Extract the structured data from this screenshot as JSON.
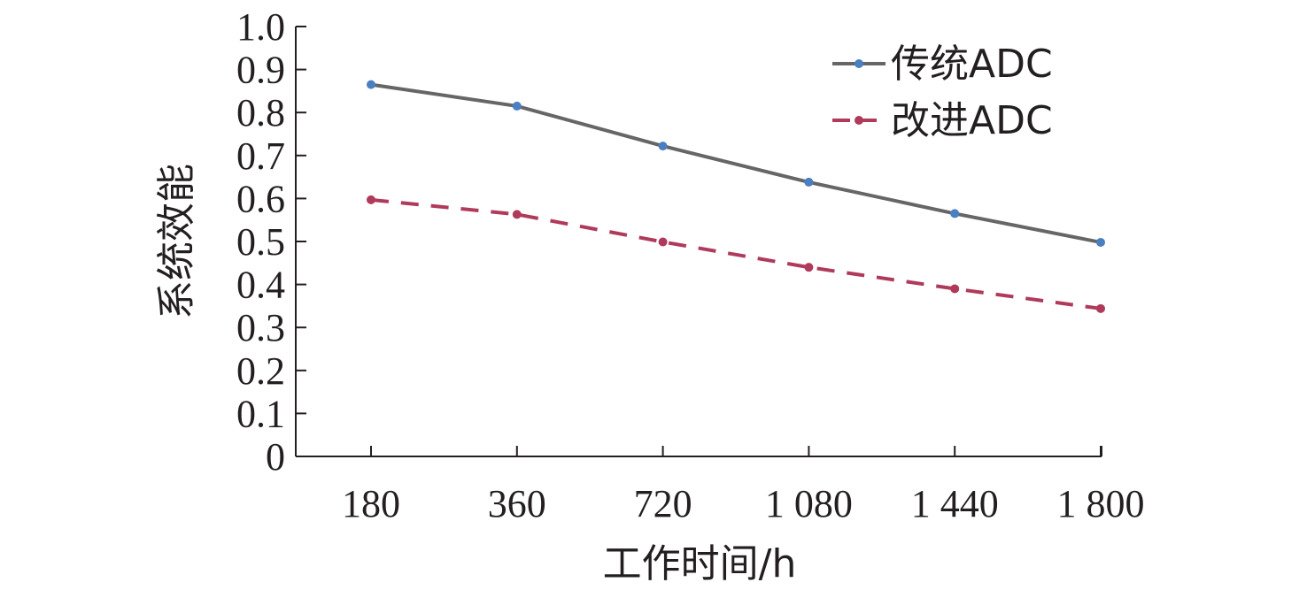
{
  "chart_data": {
    "type": "line",
    "categories": [
      "180",
      "360",
      "720",
      "1 080",
      "1 440",
      "1 800"
    ],
    "series": [
      {
        "name": "传统ADC",
        "values": [
          0.865,
          0.815,
          0.722,
          0.638,
          0.565,
          0.498
        ],
        "line_color": "#666666",
        "marker_color": "#4a7fc1",
        "dash": "solid"
      },
      {
        "name": "改进ADC",
        "values": [
          0.597,
          0.563,
          0.499,
          0.44,
          0.39,
          0.344
        ],
        "line_color": "#b03a5b",
        "marker_color": "#b03a5b",
        "dash": "dashed"
      }
    ],
    "xlabel": "工作时间/h",
    "ylabel": "系统效能",
    "ylim": [
      0,
      1.0
    ],
    "yticks": [
      "0",
      "0.1",
      "0.2",
      "0.3",
      "0.4",
      "0.5",
      "0.6",
      "0.7",
      "0.8",
      "0.9",
      "1.0"
    ],
    "grid": false,
    "legend_position": "top-right"
  }
}
